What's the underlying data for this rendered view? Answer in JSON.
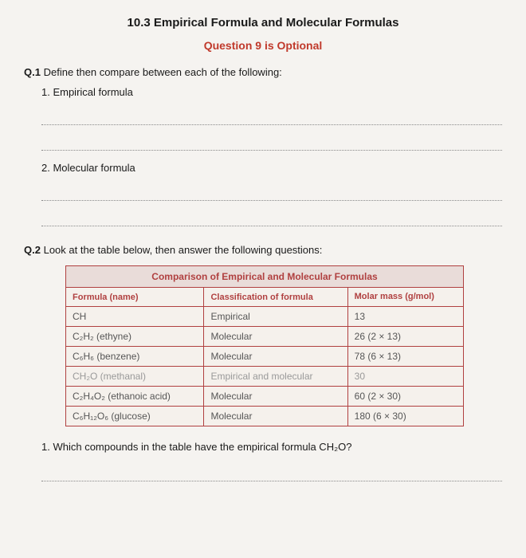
{
  "header": {
    "title": "10.3 Empirical Formula and Molecular Formulas",
    "subtitle": "Question 9 is Optional"
  },
  "q1": {
    "label": "Q.1",
    "prompt": "Define then compare between each of the following:",
    "items": [
      "1.  Empirical formula",
      "2.  Molecular formula"
    ]
  },
  "q2": {
    "label": "Q.2",
    "prompt": "Look at the table below, then answer the following questions:"
  },
  "table": {
    "caption": "Comparison of Empirical and Molecular Formulas",
    "columns": [
      "Formula (name)",
      "Classification of formula",
      "Molar mass (g/mol)"
    ],
    "rows": [
      {
        "formula": "CH",
        "class": "Empirical",
        "mass": "13"
      },
      {
        "formula": "C₂H₂ (ethyne)",
        "class": "Molecular",
        "mass": "26 (2 × 13)"
      },
      {
        "formula": "C₆H₆ (benzene)",
        "class": "Molecular",
        "mass": "78 (6 × 13)"
      },
      {
        "formula": "CH₂O (methanal)",
        "class": "Empirical and molecular",
        "mass": "30",
        "faded": true
      },
      {
        "formula": "C₂H₄O₂ (ethanoic acid)",
        "class": "Molecular",
        "mass": "60 (2 × 30)"
      },
      {
        "formula": "C₆H₁₂O₆ (glucose)",
        "class": "Molecular",
        "mass": "180 (6 × 30)"
      }
    ]
  },
  "q2sub": {
    "num": "1.",
    "text": "Which compounds in the table have the empirical formula CH₂O?"
  }
}
